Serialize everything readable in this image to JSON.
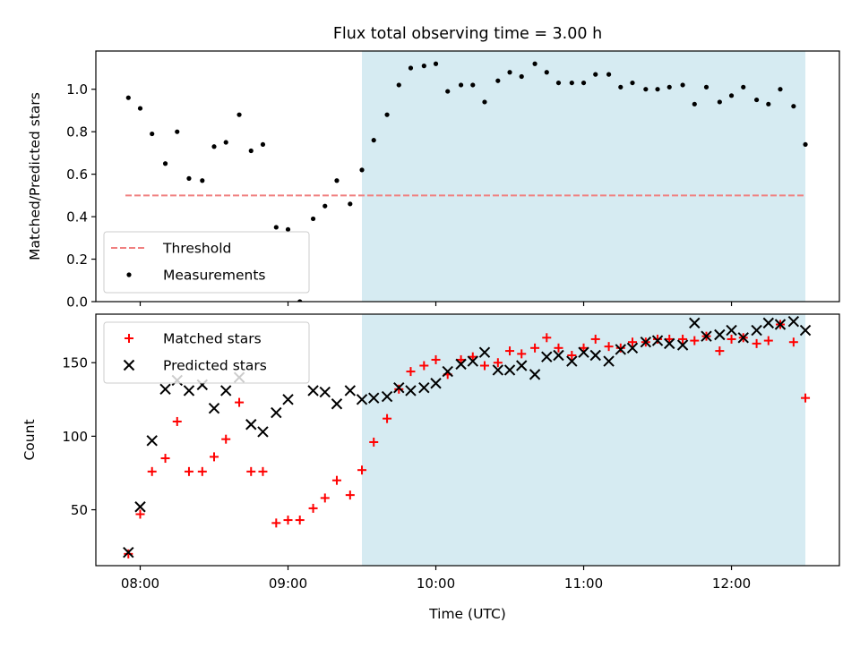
{
  "title": "Flux total observing time = 3.00 h",
  "colors": {
    "observing_window": "#add8e6",
    "threshold": "#f08080",
    "measurements": "#000000",
    "matched": "#ff0000",
    "predicted": "#000000"
  },
  "chart_data": [
    {
      "type": "scatter",
      "ylabel": "Matched/Predicted stars",
      "xlim": [
        7.7,
        12.73
      ],
      "ylim": [
        0.0,
        1.18
      ],
      "yticks": [
        0.0,
        0.2,
        0.4,
        0.6,
        0.8,
        1.0
      ],
      "ytick_labels": [
        "0.0",
        "0.2",
        "0.4",
        "0.6",
        "0.8",
        "1.0"
      ],
      "shaded_region": {
        "x_start": 9.5,
        "x_end": 12.5
      },
      "threshold": {
        "name": "Threshold",
        "value": 0.5,
        "x_start": 7.9,
        "x_end": 12.5
      },
      "legend": {
        "placement": "lower left",
        "entries": [
          "Threshold",
          "Measurements"
        ]
      },
      "series": [
        {
          "name": "Measurements",
          "x": [
            7.92,
            8.0,
            8.08,
            8.17,
            8.25,
            8.33,
            8.42,
            8.5,
            8.58,
            8.67,
            8.75,
            8.83,
            8.92,
            9.0,
            9.08,
            9.17,
            9.25,
            9.33,
            9.42,
            9.5,
            9.58,
            9.67,
            9.75,
            9.83,
            9.92,
            10.0,
            10.08,
            10.17,
            10.25,
            10.33,
            10.42,
            10.5,
            10.58,
            10.67,
            10.75,
            10.83,
            10.92,
            11.0,
            11.08,
            11.17,
            11.25,
            11.33,
            11.42,
            11.5,
            11.58,
            11.67,
            11.75,
            11.83,
            11.92,
            12.0,
            12.08,
            12.17,
            12.25,
            12.33,
            12.42,
            12.5
          ],
          "y": [
            0.96,
            0.91,
            0.79,
            0.65,
            0.8,
            0.58,
            0.57,
            0.73,
            0.75,
            0.88,
            0.71,
            0.74,
            0.35,
            0.34,
            0.0,
            0.39,
            0.45,
            0.57,
            0.46,
            0.62,
            0.76,
            0.88,
            1.02,
            1.1,
            1.11,
            1.12,
            0.99,
            1.02,
            1.02,
            0.94,
            1.04,
            1.08,
            1.06,
            1.12,
            1.08,
            1.03,
            1.03,
            1.03,
            1.07,
            1.07,
            1.01,
            1.03,
            1.0,
            1.0,
            1.01,
            1.02,
            0.93,
            1.01,
            0.94,
            0.97,
            1.01,
            0.95,
            0.93,
            1.0,
            0.92,
            0.74
          ]
        }
      ]
    },
    {
      "type": "scatter",
      "xlabel": "Time (UTC)",
      "ylabel": "Count",
      "xlim": [
        7.7,
        12.73
      ],
      "ylim": [
        12,
        183
      ],
      "xticks": [
        8,
        9,
        10,
        11,
        12
      ],
      "xtick_labels": [
        "08:00",
        "09:00",
        "10:00",
        "11:00",
        "12:00"
      ],
      "yticks": [
        50,
        100,
        150
      ],
      "ytick_labels": [
        "50",
        "100",
        "150"
      ],
      "shaded_region": {
        "x_start": 9.5,
        "x_end": 12.5
      },
      "legend": {
        "placement": "upper left",
        "entries": [
          "Matched stars",
          "Predicted stars"
        ]
      },
      "series": [
        {
          "name": "Matched stars",
          "marker": "plus",
          "x": [
            7.92,
            8.0,
            8.08,
            8.17,
            8.25,
            8.33,
            8.42,
            8.5,
            8.58,
            8.67,
            8.75,
            8.83,
            8.92,
            9.0,
            9.08,
            9.17,
            9.25,
            9.33,
            9.42,
            9.5,
            9.58,
            9.67,
            9.75,
            9.83,
            9.92,
            10.0,
            10.08,
            10.17,
            10.25,
            10.33,
            10.42,
            10.5,
            10.58,
            10.67,
            10.75,
            10.83,
            10.92,
            11.0,
            11.08,
            11.17,
            11.25,
            11.33,
            11.42,
            11.5,
            11.58,
            11.67,
            11.75,
            11.83,
            11.92,
            12.0,
            12.08,
            12.17,
            12.25,
            12.33,
            12.42,
            12.5
          ],
          "y": [
            20,
            47,
            76,
            85,
            110,
            76,
            76,
            86,
            98,
            123,
            76,
            76,
            41,
            43,
            43,
            51,
            58,
            70,
            60,
            77,
            96,
            112,
            132,
            144,
            148,
            152,
            142,
            152,
            154,
            148,
            150,
            158,
            156,
            160,
            167,
            160,
            155,
            160,
            166,
            161,
            160,
            164,
            164,
            166,
            166,
            166,
            165,
            168,
            158,
            166,
            167,
            163,
            165,
            176,
            164,
            126
          ]
        },
        {
          "name": "Predicted stars",
          "marker": "x",
          "x": [
            7.92,
            8.0,
            8.08,
            8.17,
            8.25,
            8.33,
            8.42,
            8.5,
            8.58,
            8.67,
            8.75,
            8.83,
            8.92,
            9.0,
            9.17,
            9.25,
            9.33,
            9.42,
            9.5,
            9.58,
            9.67,
            9.75,
            9.83,
            9.92,
            10.0,
            10.08,
            10.17,
            10.25,
            10.33,
            10.42,
            10.5,
            10.58,
            10.67,
            10.75,
            10.83,
            10.92,
            11.0,
            11.08,
            11.17,
            11.25,
            11.33,
            11.42,
            11.5,
            11.58,
            11.67,
            11.75,
            11.83,
            11.92,
            12.0,
            12.08,
            12.17,
            12.25,
            12.33,
            12.42,
            12.5
          ],
          "y": [
            21,
            52,
            97,
            132,
            138,
            131,
            135,
            119,
            131,
            140,
            108,
            103,
            116,
            125,
            131,
            130,
            122,
            131,
            125,
            126,
            127,
            133,
            131,
            133,
            136,
            144,
            149,
            151,
            157,
            145,
            145,
            148,
            142,
            154,
            155,
            151,
            157,
            155,
            151,
            159,
            160,
            164,
            165,
            163,
            162,
            177,
            168,
            169,
            172,
            167,
            172,
            177,
            176,
            178,
            172
          ]
        }
      ]
    }
  ]
}
